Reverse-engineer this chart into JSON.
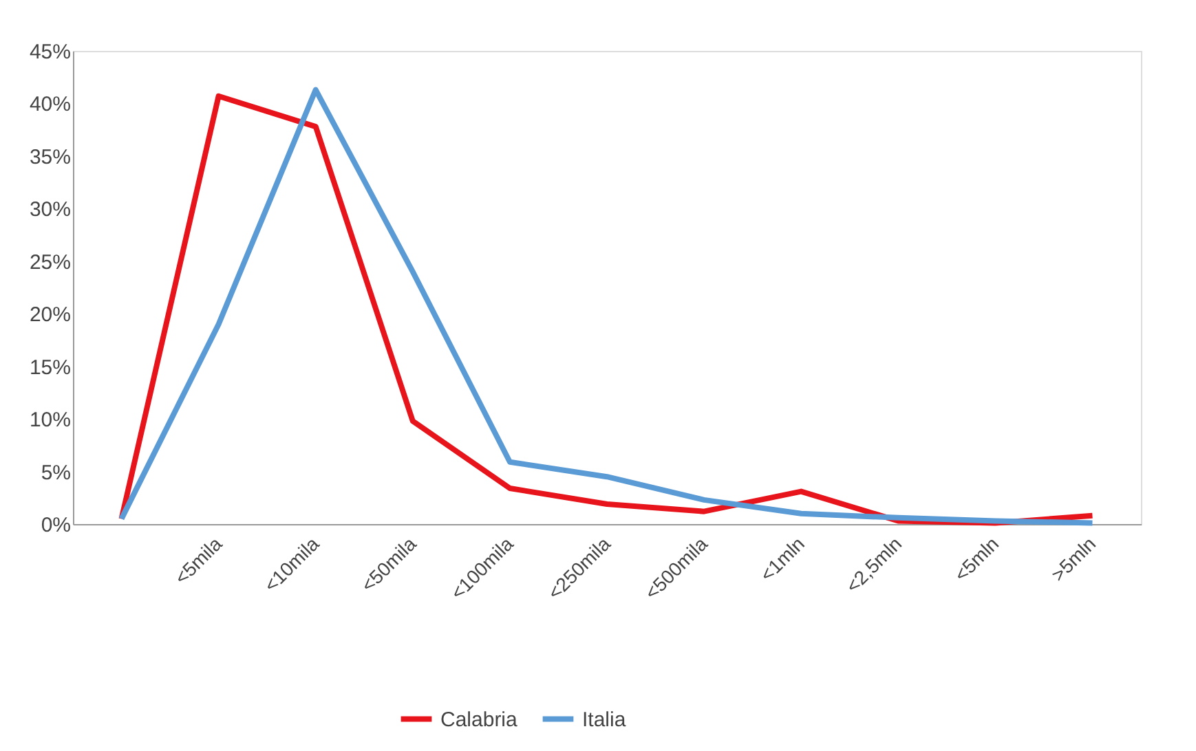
{
  "chart_data": {
    "type": "line",
    "categories": [
      null,
      "<5mila",
      "<10mila",
      "<50mila",
      "<100mila",
      "<250mila",
      "<500mila",
      "<1mln",
      "<2,5mln",
      "<5mln",
      ">5mln"
    ],
    "series": [
      {
        "name": "Calabria",
        "color": "#e8141c",
        "values": [
          0.5,
          40.7,
          37.8,
          9.8,
          3.4,
          1.9,
          1.2,
          3.1,
          0.3,
          0.1,
          0.8
        ]
      },
      {
        "name": "Italia",
        "color": "#5b9bd5",
        "values": [
          0.5,
          19,
          41.3,
          24,
          5.9,
          4.5,
          2.3,
          1.0,
          0.6,
          0.3,
          0.1
        ]
      }
    ],
    "ylim": [
      0,
      45
    ],
    "yticks": [
      {
        "value": 0,
        "label": "0%"
      },
      {
        "value": 5,
        "label": "5%"
      },
      {
        "value": 10,
        "label": "10%"
      },
      {
        "value": 15,
        "label": "15%"
      },
      {
        "value": 20,
        "label": "20%"
      },
      {
        "value": 25,
        "label": "25%"
      },
      {
        "value": 30,
        "label": "30%"
      },
      {
        "value": 35,
        "label": "35%"
      },
      {
        "value": 40,
        "label": "40%"
      },
      {
        "value": 45,
        "label": "45%"
      }
    ],
    "grid": false,
    "legend": "bottom",
    "marker": "none",
    "line_style": "solid"
  }
}
